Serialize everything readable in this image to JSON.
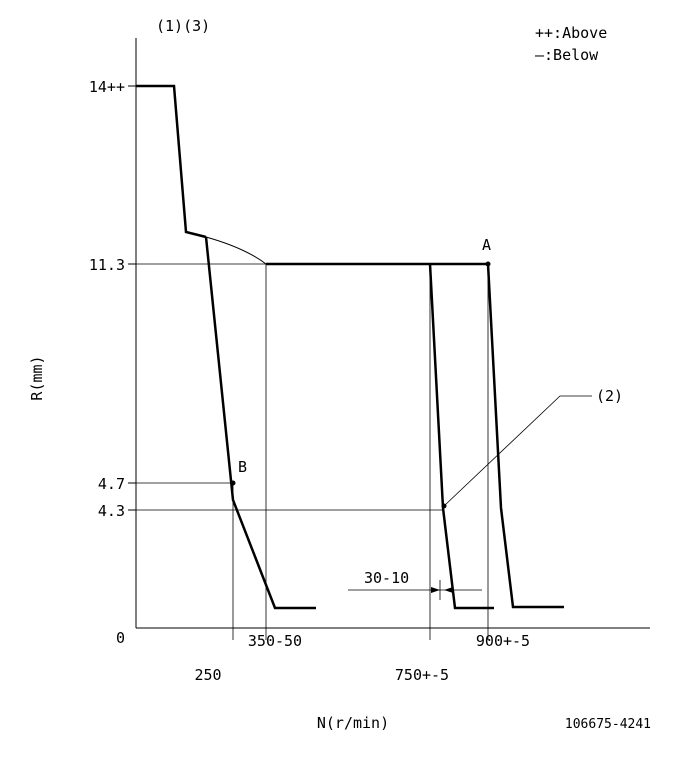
{
  "header": {
    "notes": "(1)(3)"
  },
  "legend": {
    "above": "++:Above",
    "below": "—:Below"
  },
  "axes": {
    "y_label": "R(mm)",
    "x_label": "N(r/min)",
    "origin": "0",
    "y_ticks": [
      "14++",
      "11.3",
      "4.7",
      "4.3"
    ],
    "x_ticks": [
      "250",
      "350-50",
      "750+-5",
      "900+-5"
    ]
  },
  "points": {
    "a": "A",
    "b": "B"
  },
  "callouts": {
    "c2": "(2)",
    "dim": "30-10"
  },
  "doc_number": "106675-4241"
}
